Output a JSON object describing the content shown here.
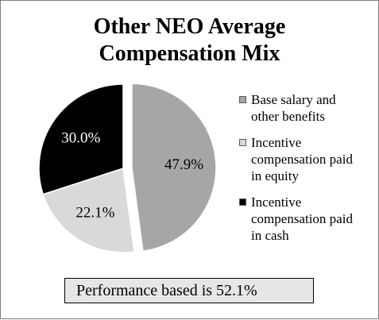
{
  "chart_data": {
    "type": "pie",
    "title": [
      "Other NEO Average",
      "Compensation Mix"
    ],
    "slices": [
      {
        "label": "Base salary and other benefits",
        "legend_lines": [
          "Base salary and",
          "other benefits"
        ],
        "value": 47.9,
        "value_label": "47.9%",
        "color": "#a6a6a6",
        "label_color": "#000000",
        "exploded": true
      },
      {
        "label": "Incentive compensation paid in equity",
        "legend_lines": [
          "Incentive",
          "compensation paid",
          "in equity"
        ],
        "value": 22.1,
        "value_label": "22.1%",
        "color": "#d9d9d9",
        "label_color": "#000000",
        "exploded": false
      },
      {
        "label": "Incentive compensation paid in cash",
        "legend_lines": [
          "Incentive",
          "compensation paid",
          "in cash"
        ],
        "value": 30.0,
        "value_label": "30.0%",
        "color": "#000000",
        "label_color": "#ffffff",
        "exploded": false
      }
    ],
    "legend_position": "right",
    "start": "top, clockwise"
  },
  "footer": {
    "text": "Performance based is 52.1%"
  }
}
